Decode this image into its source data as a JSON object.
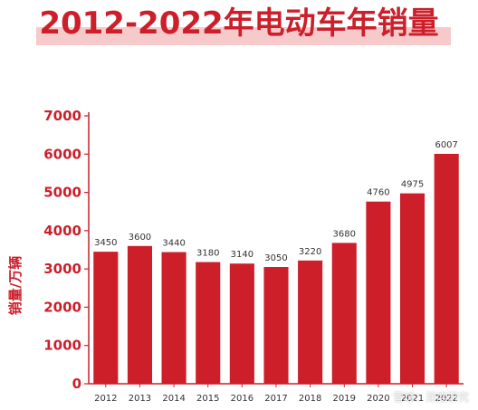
{
  "title": "2012-2022年电动车年销量",
  "watermark": "雪球：深度研究",
  "colors": {
    "bar": "#cc1f2a",
    "axis": "#cc1f2a",
    "tick_text": "#cc1f2a",
    "label_text": "#333333",
    "title_band": "#f6c9cb"
  },
  "chart_data": {
    "type": "bar",
    "title": "2012-2022年电动车年销量",
    "xlabel": "",
    "ylabel": "销量/万辆",
    "categories": [
      "2012",
      "2013",
      "2014",
      "2015",
      "2016",
      "2017",
      "2018",
      "2019",
      "2020",
      "2021",
      "2022"
    ],
    "values": [
      3450,
      3600,
      3440,
      3180,
      3140,
      3050,
      3220,
      3680,
      4760,
      4975,
      6007
    ],
    "ylim": [
      0,
      7000
    ],
    "yticks": [
      0,
      1000,
      2000,
      3000,
      4000,
      5000,
      6000,
      7000
    ],
    "data_labels": true,
    "grid": false,
    "legend": "none"
  }
}
